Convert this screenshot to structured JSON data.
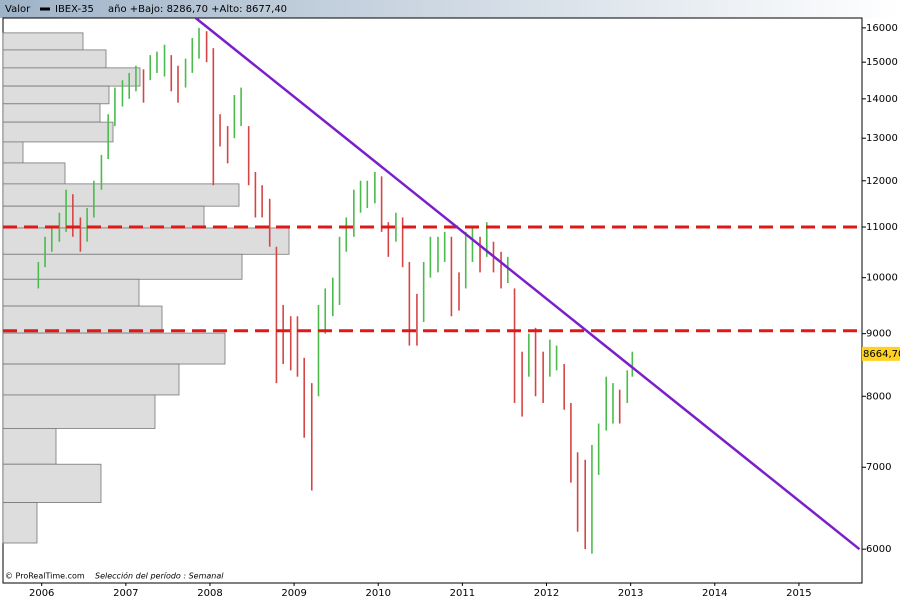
{
  "chart_data": {
    "type": "ohlc",
    "header": {
      "label": "Valor",
      "info": "año +Bajo: 8286,70 +Alto: 8677,40"
    },
    "footer": {
      "source": "© ProRealTime.com",
      "period": "Selección del período : Semanal"
    },
    "log_scale": true,
    "xlim": [
      2005.54,
      2015.75
    ],
    "xticks": [
      2006,
      2007,
      2008,
      2009,
      2010,
      2011,
      2012,
      2013,
      2014,
      2015
    ],
    "ylim": [
      5630,
      16300
    ],
    "yticks": [
      6000,
      7000,
      8000,
      9000,
      10000,
      11000,
      12000,
      13000,
      14000,
      15000,
      16000
    ],
    "up_color": "#4cbb4c",
    "down_color": "#d64545",
    "series": [
      {
        "name": "IBEX-35",
        "color": "#000000",
        "x": [
          2005.96,
          2006.04,
          2006.12,
          2006.21,
          2006.29,
          2006.37,
          2006.46,
          2006.54,
          2006.62,
          2006.71,
          2006.79,
          2006.87,
          2006.96,
          2007.04,
          2007.12,
          2007.21,
          2007.29,
          2007.37,
          2007.46,
          2007.54,
          2007.62,
          2007.71,
          2007.79,
          2007.87,
          2007.96,
          2008.04,
          2008.12,
          2008.21,
          2008.29,
          2008.37,
          2008.46,
          2008.54,
          2008.62,
          2008.71,
          2008.79,
          2008.87,
          2008.96,
          2009.04,
          2009.12,
          2009.21,
          2009.29,
          2009.37,
          2009.46,
          2009.54,
          2009.62,
          2009.71,
          2009.79,
          2009.87,
          2009.96,
          2010.04,
          2010.12,
          2010.21,
          2010.29,
          2010.37,
          2010.46,
          2010.54,
          2010.62,
          2010.71,
          2010.79,
          2010.87,
          2010.96,
          2011.04,
          2011.12,
          2011.21,
          2011.29,
          2011.37,
          2011.46,
          2011.54,
          2011.62,
          2011.71,
          2011.79,
          2011.87,
          2011.96,
          2012.04,
          2012.12,
          2012.21,
          2012.29,
          2012.37,
          2012.46,
          2012.54,
          2012.62,
          2012.71,
          2012.79,
          2012.87,
          2012.96,
          2013.02
        ],
        "low": [
          9800,
          10200,
          10500,
          10700,
          10900,
          10800,
          10500,
          10700,
          11200,
          11800,
          12500,
          13300,
          13800,
          14000,
          14200,
          13900,
          14500,
          14700,
          14600,
          14200,
          13900,
          14300,
          14700,
          15100,
          15000,
          11900,
          12800,
          12400,
          13000,
          13300,
          11900,
          11200,
          11200,
          10600,
          8200,
          8500,
          8400,
          8300,
          7400,
          6700,
          8000,
          9000,
          9300,
          9500,
          10500,
          10800,
          11300,
          11400,
          11500,
          10900,
          10400,
          10700,
          10200,
          8800,
          8800,
          9200,
          10000,
          10100,
          10300,
          9300,
          9400,
          9800,
          10300,
          10100,
          10400,
          10100,
          9800,
          9900,
          7900,
          7700,
          8300,
          8000,
          7900,
          8300,
          8400,
          7800,
          6800,
          6200,
          6000,
          5950,
          6900,
          7500,
          7600,
          7600,
          7900,
          8300
        ],
        "high": [
          10300,
          10800,
          11000,
          11300,
          11800,
          11700,
          11200,
          11400,
          12000,
          12600,
          13600,
          14300,
          14500,
          14700,
          14900,
          14800,
          15200,
          15300,
          15500,
          15200,
          14900,
          15100,
          15700,
          16000,
          15900,
          15400,
          13600,
          13300,
          14100,
          14300,
          13300,
          12200,
          11900,
          11600,
          10600,
          9500,
          9300,
          9300,
          8600,
          8200,
          9500,
          9800,
          10000,
          10800,
          11200,
          11800,
          12000,
          12000,
          12200,
          12100,
          11100,
          11300,
          11200,
          10300,
          9700,
          10300,
          10800,
          10800,
          10900,
          10800,
          10100,
          10900,
          11000,
          10800,
          11100,
          10700,
          10500,
          10400,
          9800,
          8700,
          9000,
          9100,
          8700,
          8900,
          8800,
          8500,
          7900,
          7200,
          7100,
          7300,
          7600,
          8300,
          8200,
          8100,
          8400,
          8700
        ]
      }
    ],
    "volume_profile": {
      "color": "#dddddd",
      "bins": [
        15850,
        15350,
        14840,
        14340,
        13870,
        13400,
        12910,
        12410,
        11930,
        11440,
        10980,
        10450,
        9970,
        9480,
        9010,
        8500,
        8020,
        7530,
        7040,
        6550,
        6070
      ],
      "values": [
        80,
        103,
        137,
        106,
        97,
        110,
        20,
        62,
        236,
        201,
        286,
        239,
        136,
        159,
        222,
        176,
        152,
        53,
        98,
        34
      ]
    },
    "hlines": [
      {
        "value": 11000,
        "color": "#e01818"
      },
      {
        "value": 9050,
        "color": "#e01818"
      }
    ],
    "trendline": {
      "x": [
        2007.83,
        2015.72
      ],
      "y": [
        16300,
        6000
      ],
      "color": "#7a1fc9"
    },
    "last_price": {
      "value": 8664.7,
      "label": "8664,70"
    }
  }
}
